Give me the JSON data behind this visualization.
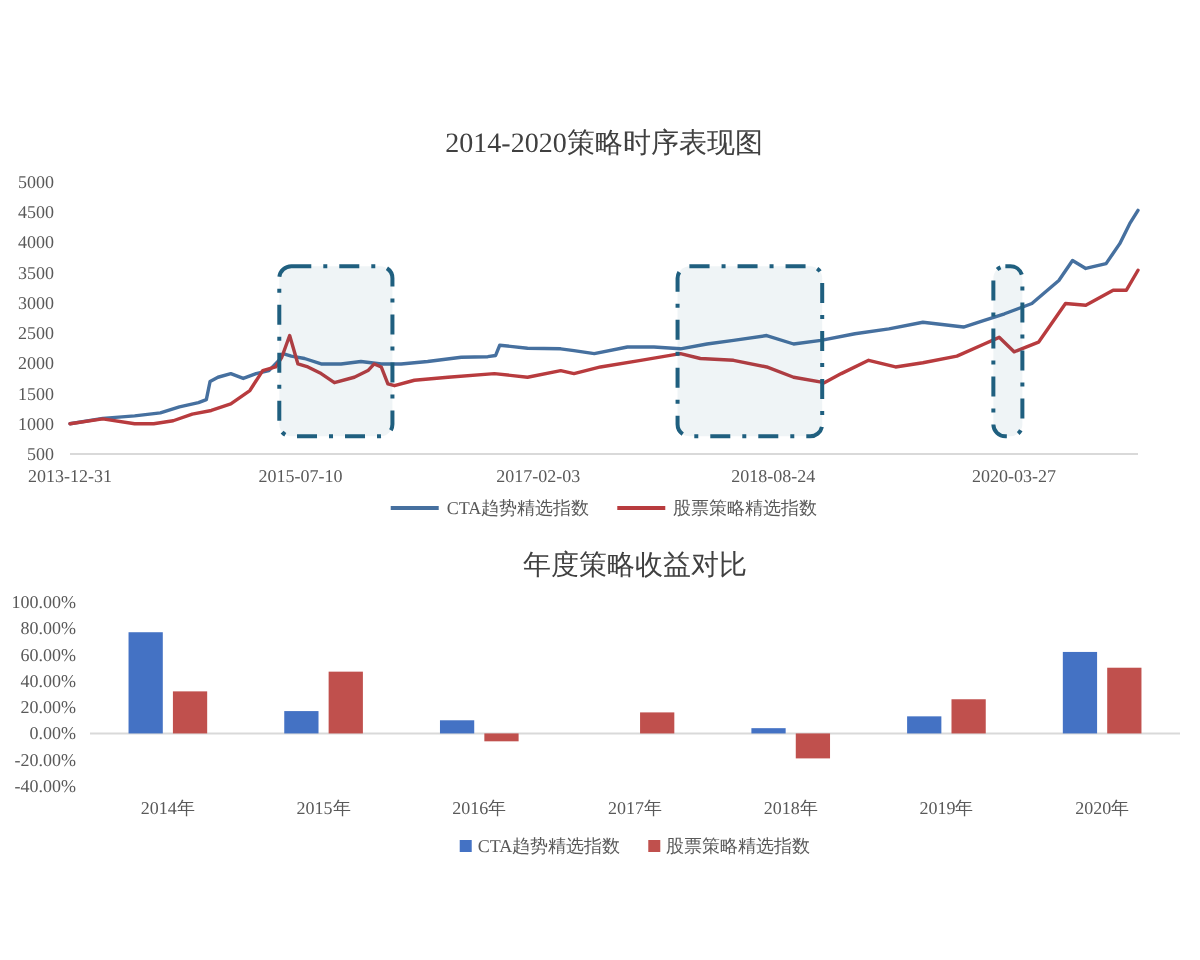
{
  "chart_data": [
    {
      "type": "line",
      "title": "2014-2020策略时序表现图",
      "series": [
        {
          "name": "CTA趋势精选指数",
          "color": "#46709f",
          "x": [
            "2013-12-31",
            "2014-03-20",
            "2014-06-05",
            "2014-08-06",
            "2014-09-21",
            "2014-11-06",
            "2014-11-25",
            "2014-12-04",
            "2014-12-23",
            "2015-01-23",
            "2015-02-22",
            "2015-03-25",
            "2015-04-25",
            "2015-05-19",
            "2015-05-29",
            "2015-06-18",
            "2015-07-20",
            "2015-08-29",
            "2015-10-16",
            "2015-12-03",
            "2016-01-21",
            "2016-03-09",
            "2016-05-12",
            "2016-08-01",
            "2016-10-04",
            "2016-10-23",
            "2016-11-02",
            "2017-01-08",
            "2017-03-29",
            "2017-04-30",
            "2017-06-18",
            "2017-09-06",
            "2017-11-09",
            "2018-01-12",
            "2018-03-17",
            "2018-05-20",
            "2018-08-08",
            "2018-10-12",
            "2018-12-17",
            "2019-03-09",
            "2019-05-30",
            "2019-08-20",
            "2019-11-26",
            "2020-01-15",
            "2020-03-04",
            "2020-05-09",
            "2020-07-13",
            "2020-08-15",
            "2020-09-16",
            "2020-11-04",
            "2020-12-07",
            "2020-12-31",
            "2021-01-20"
          ],
          "values": [
            1000,
            1090,
            1130,
            1180,
            1280,
            1350,
            1400,
            1700,
            1770,
            1830,
            1750,
            1830,
            1880,
            2050,
            2160,
            2120,
            2080,
            1990,
            1990,
            2030,
            1990,
            1990,
            2030,
            2100,
            2110,
            2130,
            2300,
            2250,
            2240,
            2210,
            2160,
            2270,
            2270,
            2240,
            2320,
            2380,
            2460,
            2320,
            2380,
            2490,
            2570,
            2680,
            2600,
            2710,
            2820,
            2990,
            3370,
            3700,
            3570,
            3650,
            3980,
            4310,
            4530
          ]
        },
        {
          "name": "股票策略精选指数",
          "color": "#b83b3e",
          "x": [
            "2013-12-31",
            "2014-03-20",
            "2014-06-05",
            "2014-07-21",
            "2014-09-06",
            "2014-10-22",
            "2014-12-07",
            "2015-01-23",
            "2015-03-10",
            "2015-04-10",
            "2015-05-11",
            "2015-05-26",
            "2015-06-14",
            "2015-07-04",
            "2015-07-28",
            "2015-08-29",
            "2015-09-30",
            "2015-11-17",
            "2015-12-20",
            "2016-01-04",
            "2016-01-21",
            "2016-02-06",
            "2016-02-22",
            "2016-04-10",
            "2016-06-30",
            "2016-10-20",
            "2017-01-08",
            "2017-03-29",
            "2017-04-30",
            "2017-07-03",
            "2017-10-08",
            "2018-01-12",
            "2018-03-01",
            "2018-05-20",
            "2018-08-08",
            "2018-10-12",
            "2018-12-25",
            "2019-02-04",
            "2019-04-11",
            "2019-06-15",
            "2019-08-20",
            "2019-11-10",
            "2020-01-15",
            "2020-02-20",
            "2020-03-27",
            "2020-05-25",
            "2020-07-29",
            "2020-09-16",
            "2020-11-21",
            "2020-12-23",
            "2021-01-20"
          ],
          "values": [
            1000,
            1080,
            1000,
            1000,
            1050,
            1160,
            1220,
            1330,
            1550,
            1880,
            1940,
            2100,
            2460,
            1990,
            1940,
            1830,
            1680,
            1770,
            1880,
            1990,
            1940,
            1660,
            1630,
            1720,
            1770,
            1830,
            1770,
            1880,
            1830,
            1940,
            2050,
            2160,
            2080,
            2050,
            1940,
            1770,
            1680,
            1830,
            2050,
            1940,
            2010,
            2120,
            2320,
            2430,
            2190,
            2350,
            2990,
            2960,
            3210,
            3210,
            3540
          ]
        }
      ],
      "xlim": [
        "2013-12-31",
        "2021-01-20"
      ],
      "xticks": [
        "2013-12-31",
        "2015-07-10",
        "2017-02-03",
        "2018-08-24",
        "2020-03-27"
      ],
      "ylim": [
        500,
        5000
      ],
      "yticks": [
        500,
        1000,
        1500,
        2000,
        2500,
        3000,
        3500,
        4000,
        4500,
        5000
      ],
      "bands": [
        {
          "axis": "x",
          "from": "2015-05-20",
          "to": "2016-02-17",
          "color": "#1f5f7f"
        },
        {
          "axis": "x",
          "from": "2018-01-05",
          "to": "2018-12-20",
          "color": "#1f5f7f"
        },
        {
          "axis": "x",
          "from": "2020-02-06",
          "to": "2020-04-16",
          "color": "#1f5f7f"
        }
      ],
      "legend": "bottom"
    },
    {
      "type": "bar",
      "title": "年度策略收益对比",
      "categories": [
        "2014年",
        "2015年",
        "2016年",
        "2017年",
        "2018年",
        "2019年",
        "2020年"
      ],
      "series": [
        {
          "name": "CTA趋势精选指数",
          "color": "#4472c4",
          "values": [
            77,
            17,
            10,
            0,
            4,
            13,
            62
          ]
        },
        {
          "name": "股票策略精选指数",
          "color": "#c0504d",
          "values": [
            32,
            47,
            -6,
            16,
            -19,
            26,
            50
          ]
        }
      ],
      "ylim": [
        -40,
        100
      ],
      "yticks": [
        {
          "value": -40,
          "label": "-40.00%"
        },
        {
          "value": -20,
          "label": "-20.00%"
        },
        {
          "value": 0,
          "label": "0.00%"
        },
        {
          "value": 20,
          "label": "20.00%"
        },
        {
          "value": 40,
          "label": "40.00%"
        },
        {
          "value": 60,
          "label": "60.00%"
        },
        {
          "value": 80,
          "label": "80.00%"
        },
        {
          "value": 100,
          "label": "100.00%"
        }
      ],
      "legend": "bottom"
    }
  ]
}
